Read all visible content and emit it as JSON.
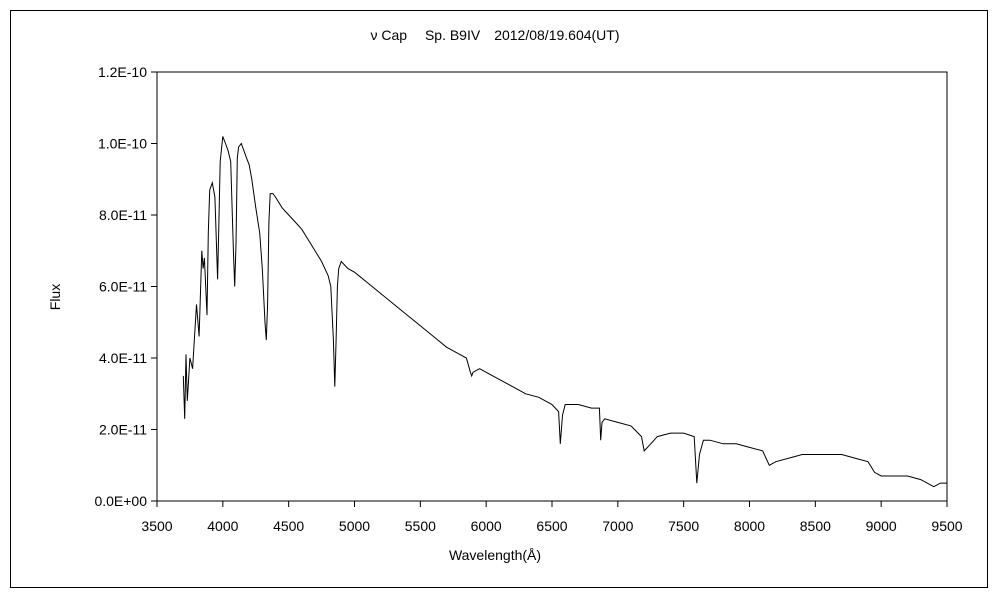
{
  "chart_data": {
    "type": "line",
    "title": "ν Cap　 Sp. B9IV　2012/08/19.604(UT)",
    "xlabel": "Wavelength(Å)",
    "ylabel": "Flux",
    "xlim": [
      3500,
      9500
    ],
    "ylim": [
      0,
      1.2e-10
    ],
    "xticks": [
      3500,
      4000,
      4500,
      5000,
      5500,
      6000,
      6500,
      7000,
      7500,
      8000,
      8500,
      9000,
      9500
    ],
    "yticks": [
      0,
      2e-11,
      4e-11,
      6e-11,
      8e-11,
      1e-10,
      1.2e-10
    ],
    "ytick_labels": [
      "0.0E+00",
      "2.0E-11",
      "4.0E-11",
      "6.0E-11",
      "8.0E-11",
      "1.0E-10",
      "1.2E-10"
    ],
    "grid": false,
    "legend": "none",
    "line_color": "#000000",
    "series": [
      {
        "x": [
          3700,
          3710,
          3720,
          3730,
          3750,
          3770,
          3800,
          3820,
          3840,
          3850,
          3860,
          3880,
          3890,
          3900,
          3920,
          3940,
          3960,
          3970,
          3980,
          4000,
          4020,
          4040,
          4060,
          4080,
          4090,
          4100,
          4110,
          4120,
          4140,
          4160,
          4180,
          4200,
          4220,
          4250,
          4280,
          4300,
          4320,
          4330,
          4340,
          4350,
          4360,
          4380,
          4400,
          4450,
          4500,
          4550,
          4600,
          4650,
          4700,
          4750,
          4800,
          4820,
          4840,
          4850,
          4860,
          4870,
          4880,
          4900,
          4950,
          5000,
          5100,
          5200,
          5300,
          5400,
          5500,
          5600,
          5700,
          5800,
          5850,
          5880,
          5890,
          5900,
          5950,
          6000,
          6100,
          6200,
          6250,
          6300,
          6400,
          6500,
          6550,
          6563,
          6580,
          6600,
          6700,
          6800,
          6860,
          6870,
          6880,
          6900,
          7000,
          7100,
          7180,
          7200,
          7250,
          7300,
          7400,
          7500,
          7580,
          7600,
          7620,
          7650,
          7700,
          7800,
          7900,
          8000,
          8100,
          8150,
          8200,
          8300,
          8400,
          8500,
          8600,
          8700,
          8800,
          8900,
          8950,
          9000,
          9100,
          9200,
          9300,
          9400,
          9450,
          9500
        ],
        "y": [
          3.5e-11,
          2.3e-11,
          4.1e-11,
          2.8e-11,
          4e-11,
          3.7e-11,
          5.5e-11,
          4.6e-11,
          7e-11,
          6.5e-11,
          6.8e-11,
          5.2e-11,
          7.5e-11,
          8.7e-11,
          8.9e-11,
          8.5e-11,
          6.2e-11,
          7.8e-11,
          9.5e-11,
          1.02e-10,
          1e-10,
          9.8e-11,
          9.5e-11,
          7e-11,
          6e-11,
          7.2e-11,
          9.6e-11,
          9.9e-11,
          1e-10,
          9.8e-11,
          9.6e-11,
          9.4e-11,
          9e-11,
          8.2e-11,
          7.5e-11,
          6.5e-11,
          5e-11,
          4.5e-11,
          5.5e-11,
          7.8e-11,
          8.6e-11,
          8.6e-11,
          8.5e-11,
          8.2e-11,
          8e-11,
          7.8e-11,
          7.6e-11,
          7.3e-11,
          7e-11,
          6.7e-11,
          6.3e-11,
          6e-11,
          4.5e-11,
          3.2e-11,
          4.5e-11,
          6e-11,
          6.5e-11,
          6.7e-11,
          6.5e-11,
          6.4e-11,
          6.1e-11,
          5.8e-11,
          5.5e-11,
          5.2e-11,
          4.9e-11,
          4.6e-11,
          4.3e-11,
          4.1e-11,
          4e-11,
          3.6e-11,
          3.5e-11,
          3.6e-11,
          3.7e-11,
          3.6e-11,
          3.4e-11,
          3.2e-11,
          3.1e-11,
          3e-11,
          2.9e-11,
          2.7e-11,
          2.5e-11,
          1.6e-11,
          2.4e-11,
          2.7e-11,
          2.7e-11,
          2.6e-11,
          2.6e-11,
          1.7e-11,
          2.2e-11,
          2.3e-11,
          2.2e-11,
          2.1e-11,
          1.8e-11,
          1.4e-11,
          1.6e-11,
          1.8e-11,
          1.9e-11,
          1.9e-11,
          1.8e-11,
          5e-12,
          1.3e-11,
          1.7e-11,
          1.7e-11,
          1.6e-11,
          1.6e-11,
          1.5e-11,
          1.4e-11,
          1e-11,
          1.1e-11,
          1.2e-11,
          1.3e-11,
          1.3e-11,
          1.3e-11,
          1.3e-11,
          1.2e-11,
          1.1e-11,
          8e-12,
          7e-12,
          7e-12,
          7e-12,
          6e-12,
          4e-12,
          5e-12,
          5e-12
        ]
      }
    ]
  }
}
